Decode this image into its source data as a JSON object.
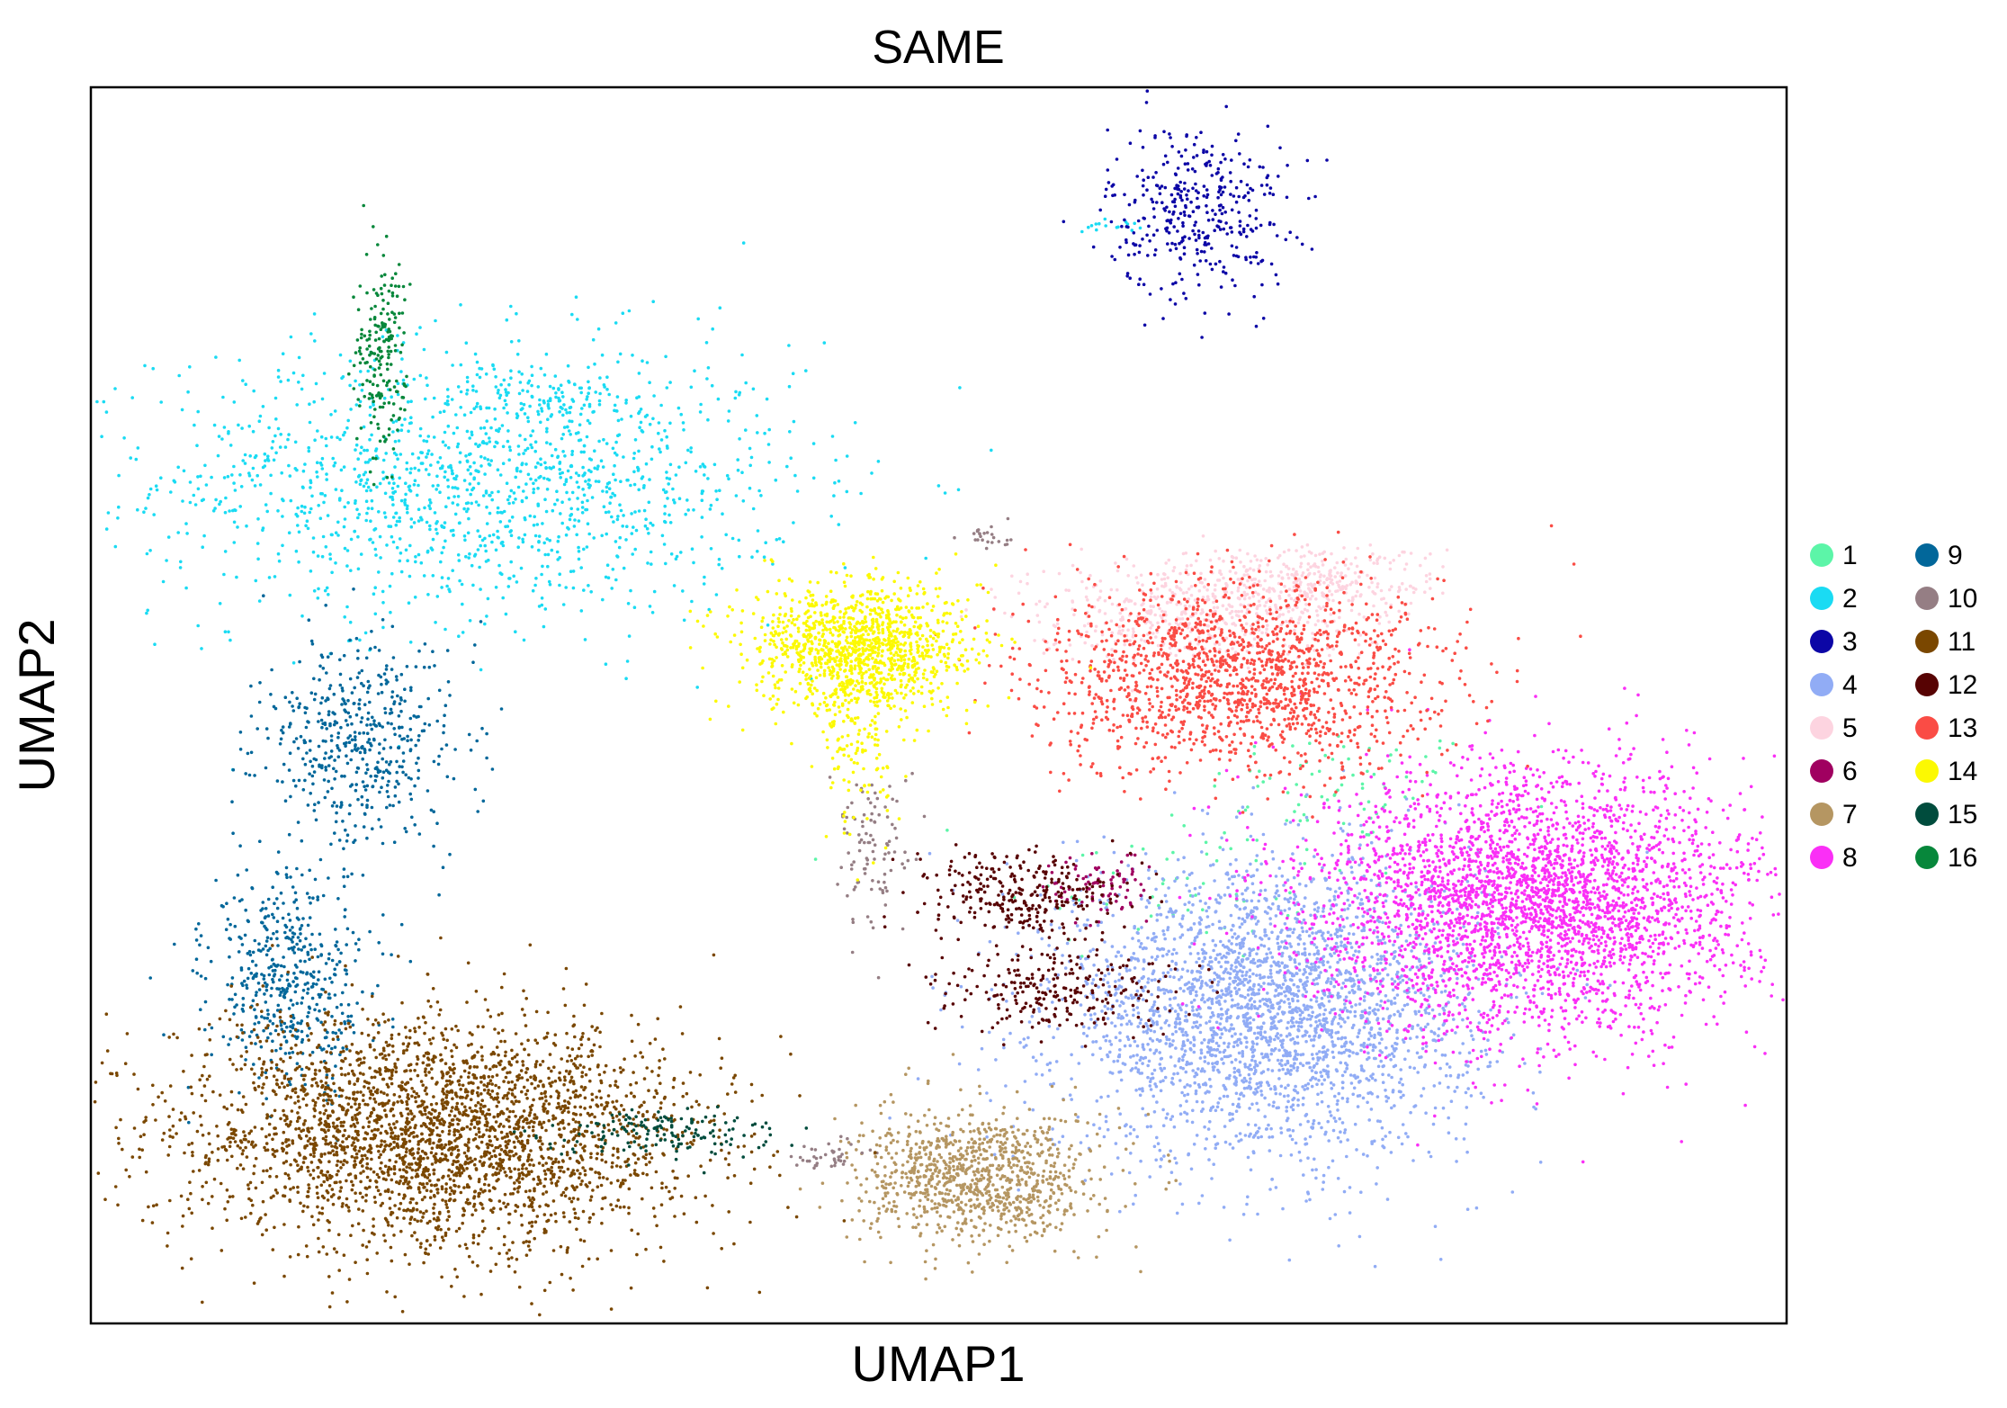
{
  "chart_data": {
    "type": "scatter",
    "title": "SAME",
    "xlabel": "UMAP1",
    "ylabel": "UMAP2",
    "x_ticks": false,
    "y_ticks": false,
    "grid": false,
    "legend_position": "right",
    "legend_columns": 2,
    "series": [
      {
        "name": "1",
        "color": "#5cf5a8",
        "clusters": [
          {
            "cx": 12.6,
            "cy": 7.4,
            "sx": 0.7,
            "sy": 0.4,
            "n": 70
          },
          {
            "cx": 10.9,
            "cy": 6.1,
            "sx": 0.9,
            "sy": 0.6,
            "n": 60
          }
        ]
      },
      {
        "name": "2",
        "color": "#1adbf3",
        "clusters": [
          {
            "cx": 3.9,
            "cy": 11.6,
            "sx": 1.6,
            "sy": 0.95,
            "n": 1500
          },
          {
            "cx": 4.6,
            "cy": 12.7,
            "sx": 0.3,
            "sy": 0.15,
            "n": 50
          },
          {
            "cx": 10.2,
            "cy": 15.1,
            "sx": 0.15,
            "sy": 0.05,
            "n": 15
          }
        ]
      },
      {
        "name": "3",
        "color": "#0c06a6",
        "clusters": [
          {
            "cx": 11.1,
            "cy": 15.3,
            "sx": 0.45,
            "sy": 0.6,
            "n": 380
          }
        ]
      },
      {
        "name": "4",
        "color": "#91acf5",
        "clusters": [
          {
            "cx": 11.8,
            "cy": 4.3,
            "sx": 1.05,
            "sy": 1.0,
            "n": 2900
          }
        ]
      },
      {
        "name": "5",
        "color": "#fdd4e0",
        "clusters": [
          {
            "cx": 11.0,
            "cy": 9.8,
            "sx": 0.8,
            "sy": 0.35,
            "n": 500
          },
          {
            "cx": 12.3,
            "cy": 10.2,
            "sx": 0.6,
            "sy": 0.25,
            "n": 300
          }
        ]
      },
      {
        "name": "6",
        "color": "#a00060",
        "clusters": [
          {
            "cx": 10.1,
            "cy": 6.0,
            "sx": 0.25,
            "sy": 0.25,
            "n": 80
          }
        ]
      },
      {
        "name": "7",
        "color": "#b59662",
        "clusters": [
          {
            "cx": 8.9,
            "cy": 2.0,
            "sx": 0.6,
            "sy": 0.45,
            "n": 1000
          }
        ]
      },
      {
        "name": "8",
        "color": "#fa2ff6",
        "clusters": [
          {
            "cx": 14.5,
            "cy": 5.8,
            "sx": 1.1,
            "sy": 0.9,
            "n": 3300
          }
        ]
      },
      {
        "name": "9",
        "color": "#02679a",
        "clusters": [
          {
            "cx": 2.7,
            "cy": 8.0,
            "sx": 0.5,
            "sy": 0.7,
            "n": 500
          },
          {
            "cx": 2.0,
            "cy": 4.7,
            "sx": 0.4,
            "sy": 0.7,
            "n": 500
          }
        ]
      },
      {
        "name": "10",
        "color": "#957e84",
        "clusters": [
          {
            "cx": 7.8,
            "cy": 6.5,
            "sx": 0.2,
            "sy": 0.6,
            "n": 100
          },
          {
            "cx": 7.4,
            "cy": 2.3,
            "sx": 0.2,
            "sy": 0.1,
            "n": 40
          },
          {
            "cx": 9.0,
            "cy": 10.8,
            "sx": 0.12,
            "sy": 0.1,
            "n": 25
          }
        ]
      },
      {
        "name": "11",
        "color": "#7a4700",
        "clusters": [
          {
            "cx": 3.5,
            "cy": 2.6,
            "sx": 1.3,
            "sy": 0.8,
            "n": 3000
          }
        ]
      },
      {
        "name": "12",
        "color": "#570303",
        "clusters": [
          {
            "cx": 9.3,
            "cy": 5.9,
            "sx": 0.5,
            "sy": 0.3,
            "n": 300
          },
          {
            "cx": 9.7,
            "cy": 4.6,
            "sx": 0.6,
            "sy": 0.3,
            "n": 250
          }
        ]
      },
      {
        "name": "13",
        "color": "#fa4c45",
        "clusters": [
          {
            "cx": 11.5,
            "cy": 8.9,
            "sx": 1.0,
            "sy": 0.65,
            "n": 1600
          }
        ]
      },
      {
        "name": "14",
        "color": "#fcf902",
        "clusters": [
          {
            "cx": 7.7,
            "cy": 9.3,
            "sx": 0.55,
            "sy": 0.45,
            "n": 1200
          },
          {
            "cx": 7.7,
            "cy": 8.0,
            "sx": 0.2,
            "sy": 0.7,
            "n": 150
          }
        ]
      },
      {
        "name": "15",
        "color": "#004c3d",
        "clusters": [
          {
            "cx": 5.7,
            "cy": 2.6,
            "sx": 0.6,
            "sy": 0.15,
            "n": 150
          }
        ]
      },
      {
        "name": "16",
        "color": "#07873b",
        "clusters": [
          {
            "cx": 2.9,
            "cy": 13.3,
            "sx": 0.12,
            "sy": 0.7,
            "n": 200
          }
        ]
      }
    ],
    "xlim": [
      0,
      17
    ],
    "ylim": [
      0,
      17
    ]
  }
}
